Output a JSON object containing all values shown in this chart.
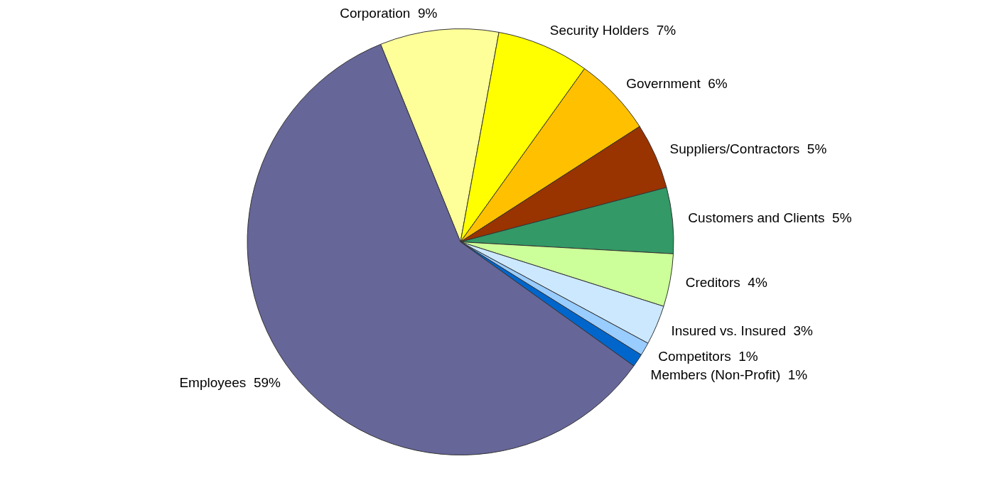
{
  "chart_data": {
    "type": "pie",
    "categories": [
      "Corporation",
      "Security Holders",
      "Government",
      "Suppliers/Contractors",
      "Customers and Clients",
      "Creditors",
      "Insured vs. Insured",
      "Competitors",
      "Members (Non-Profit)",
      "Employees"
    ],
    "values": [
      9,
      7,
      6,
      5,
      5,
      4,
      3,
      1,
      1,
      59
    ],
    "value_labels": [
      "9%",
      "7%",
      "6%",
      "5%",
      "5%",
      "4%",
      "3%",
      "1%",
      "1%",
      "59%"
    ],
    "colors": [
      "#ffff99",
      "#ffff00",
      "#ffc000",
      "#993300",
      "#339966",
      "#ccff99",
      "#cce8ff",
      "#99ccff",
      "#0066cc",
      "#666699"
    ],
    "legend": false
  }
}
